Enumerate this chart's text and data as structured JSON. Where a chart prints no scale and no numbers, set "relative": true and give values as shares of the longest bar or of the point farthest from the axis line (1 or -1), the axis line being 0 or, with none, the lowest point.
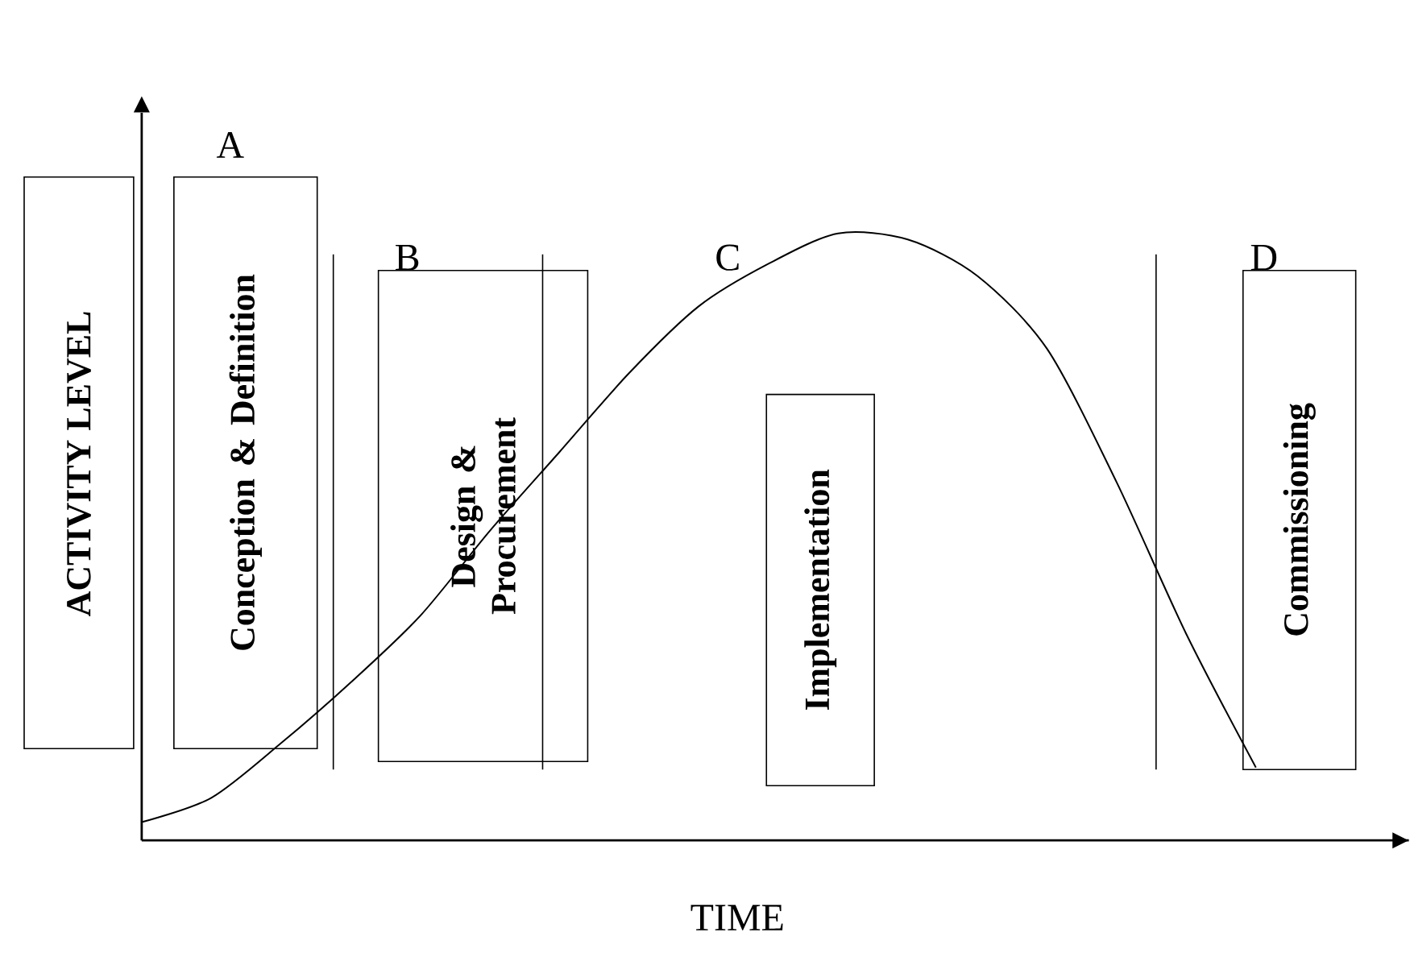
{
  "chart_data": {
    "type": "line",
    "relative": true,
    "xlabel": "TIME",
    "ylabel": "ACTIVITY LEVEL",
    "categories": [
      null,
      null,
      null,
      null,
      null,
      null,
      null,
      null,
      null,
      null,
      null,
      null,
      null,
      null,
      null,
      null,
      null
    ],
    "values": [
      0.03,
      0.07,
      0.16,
      0.26,
      0.37,
      0.51,
      0.64,
      0.77,
      0.88,
      0.95,
      1.0,
      0.99,
      0.93,
      0.81,
      0.59,
      0.34,
      0.12
    ],
    "color": "#000000",
    "marker": "none",
    "line_style": "solid",
    "annotations": [
      "A",
      "B",
      "C",
      "D",
      "Conception & Definition",
      "Design & Procurement",
      "Implementation",
      "Commissioning"
    ]
  }
}
